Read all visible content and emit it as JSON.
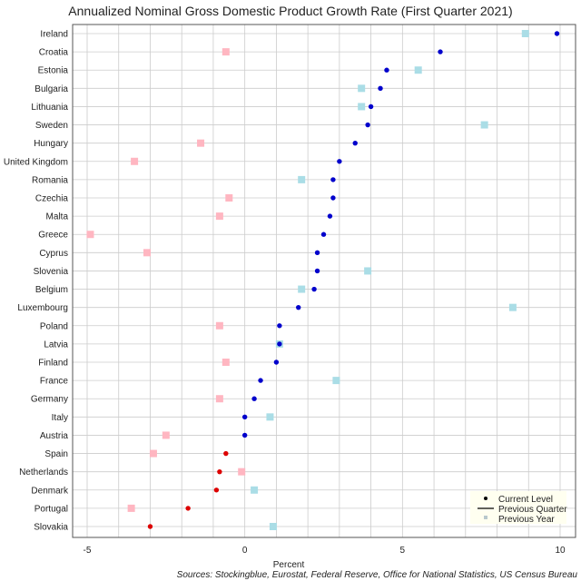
{
  "chart_data": {
    "type": "scatter",
    "title": "Annualized Nominal Gross Domestic Product Growth Rate (First Quarter 2021)",
    "xlabel": "Percent",
    "ylabel": "",
    "xlim": [
      -5,
      10
    ],
    "xticks": [
      -5,
      0,
      5,
      10
    ],
    "grid": true,
    "legend_position": "bottom-right",
    "legend": [
      "Current Level",
      "Previous Quarter",
      "Previous Year"
    ],
    "source": "Sources: Stockingblue, Eurostat, Federal Reserve, Office for National Statistics, US Census Bureau",
    "colors": {
      "positive": "#0000cc",
      "negative": "#dd0000",
      "prev_year_positive": "#aadde6",
      "prev_year_negative": "#ffb6c1",
      "grid": "#cccccc",
      "axis": "#000000",
      "legend_bg": "#fffff0"
    },
    "categories": [
      "Ireland",
      "Croatia",
      "Estonia",
      "Bulgaria",
      "Lithuania",
      "Sweden",
      "Hungary",
      "United Kingdom",
      "Romania",
      "Czechia",
      "Malta",
      "Greece",
      "Cyprus",
      "Slovenia",
      "Belgium",
      "Luxembourg",
      "Poland",
      "Latvia",
      "Finland",
      "France",
      "Germany",
      "Italy",
      "Austria",
      "Spain",
      "Netherlands",
      "Denmark",
      "Portugal",
      "Slovakia"
    ],
    "series": [
      {
        "name": "Current Level",
        "values": [
          9.9,
          6.2,
          4.5,
          4.3,
          4.0,
          3.9,
          3.5,
          3.0,
          2.8,
          2.8,
          2.7,
          2.5,
          2.3,
          2.3,
          2.2,
          1.7,
          1.1,
          1.1,
          1.0,
          0.5,
          0.3,
          0.0,
          0.0,
          -0.6,
          -0.8,
          -0.9,
          -1.8,
          -3.0
        ]
      },
      {
        "name": "Previous Year",
        "values": [
          8.9,
          -0.6,
          5.5,
          3.7,
          3.7,
          7.6,
          -1.4,
          -3.5,
          1.8,
          -0.5,
          -0.8,
          -4.9,
          -3.1,
          3.9,
          1.8,
          8.5,
          -0.8,
          1.1,
          -0.6,
          2.9,
          -0.8,
          0.8,
          -2.5,
          -2.9,
          -0.1,
          0.3,
          -3.6,
          0.9
        ]
      }
    ]
  }
}
